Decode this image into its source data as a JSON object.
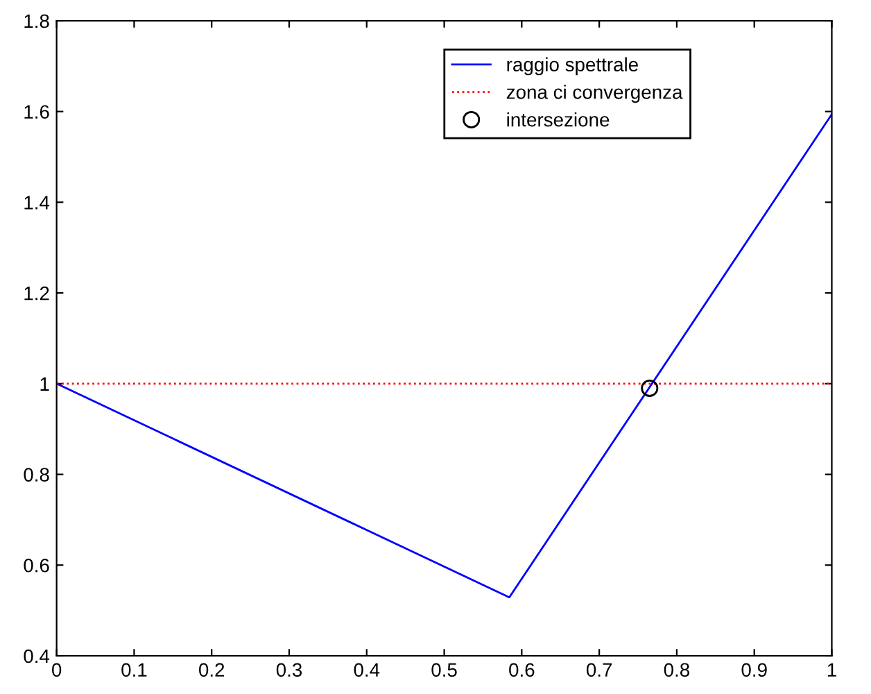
{
  "chart_data": {
    "type": "line",
    "xlim": [
      0,
      1
    ],
    "xticks": [
      0,
      0.1,
      0.2,
      0.3,
      0.4,
      0.5,
      0.6,
      0.7,
      0.8,
      0.9,
      1
    ],
    "ylim": [
      0.4,
      1.8
    ],
    "yticks": [
      0.4,
      0.6,
      0.8,
      1,
      1.2,
      1.4,
      1.6,
      1.8
    ],
    "grid": false,
    "legend": "top right",
    "series": [
      {
        "name": "raggio spettrale",
        "color": "#0000ff",
        "line_style": "solid",
        "marker": "none",
        "x": [
          0,
          0.584,
          1
        ],
        "values": [
          1,
          0.529,
          1.594
        ]
      },
      {
        "name": "zona ci convergenza",
        "color": "#ff0000",
        "line_style": "dotted",
        "marker": "none",
        "x": [
          0,
          1
        ],
        "values": [
          1,
          1
        ]
      },
      {
        "name": "intersezione",
        "color": "#000000",
        "type": "scatter",
        "marker": "circle",
        "x": [
          0.765
        ],
        "values": [
          0.99
        ]
      }
    ]
  }
}
